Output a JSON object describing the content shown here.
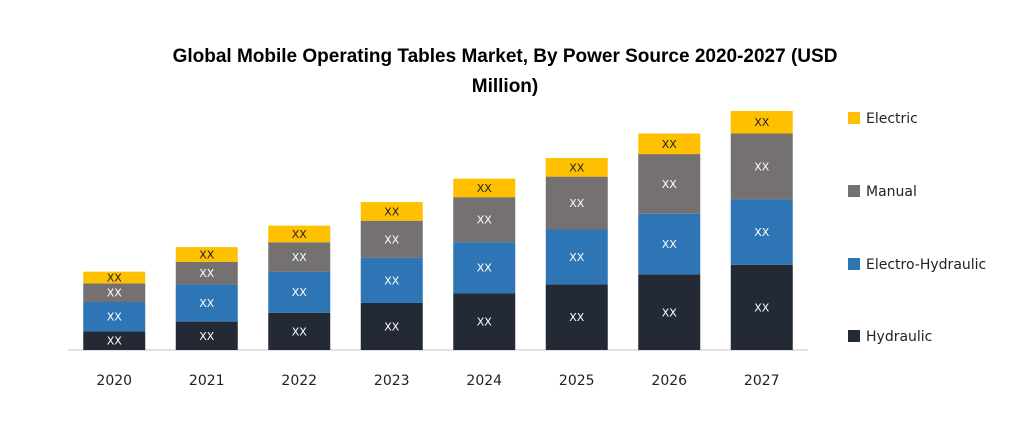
{
  "chart_data": {
    "type": "bar",
    "stacked": true,
    "title": "Global Mobile Operating Tables Market, By Power Source  2020-2027 (USD Million)",
    "title_lines": [
      "Global Mobile Operating Tables Market, By Power Source  2020-2027 (USD",
      "Million)"
    ],
    "categories": [
      "2020",
      "2021",
      "2022",
      "2023",
      "2024",
      "2025",
      "2026",
      "2027"
    ],
    "series": [
      {
        "name": "Hydraulic",
        "color": "#232a35",
        "values": [
          19,
          29,
          38,
          48,
          58,
          67,
          77,
          87
        ],
        "labels": [
          "XX",
          "XX",
          "XX",
          "XX",
          "XX",
          "XX",
          "XX",
          "XX"
        ]
      },
      {
        "name": "Electro-Hydraulic",
        "color": "#2e75b6",
        "values": [
          30,
          38,
          42,
          46,
          52,
          56,
          62,
          67
        ],
        "labels": [
          "XX",
          "XX",
          "XX",
          "XX",
          "XX",
          "XX",
          "XX",
          "XX"
        ]
      },
      {
        "name": "Manual",
        "color": "#767171",
        "values": [
          19,
          23,
          30,
          38,
          46,
          54,
          61,
          67
        ],
        "labels": [
          "XX",
          "XX",
          "XX",
          "XX",
          "XX",
          "XX",
          "XX",
          "XX"
        ]
      },
      {
        "name": "Electric",
        "color": "#ffc000",
        "values": [
          12,
          15,
          17,
          19,
          19,
          19,
          21,
          23
        ],
        "labels": [
          "XX",
          "XX",
          "XX",
          "XX",
          "XX",
          "XX",
          "XX",
          "XX"
        ]
      }
    ],
    "legend": {
      "placement": "right",
      "order": [
        "Electric",
        "Manual",
        "Electro-Hydraulic",
        "Hydraulic"
      ]
    },
    "ylim": [
      0,
      245
    ],
    "grid": false
  }
}
